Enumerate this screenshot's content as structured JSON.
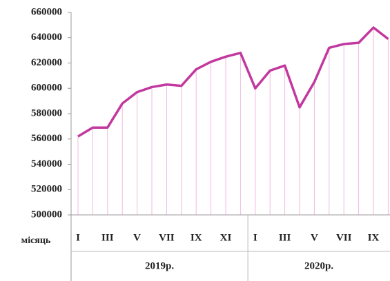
{
  "chart_data": {
    "type": "line",
    "x_label": "місяць",
    "groups": [
      {
        "name": "2019р.",
        "categories": [
          "I",
          null,
          "III",
          null,
          "V",
          null,
          "VII",
          null,
          "IX",
          null,
          "XI",
          null
        ]
      },
      {
        "name": "2020р.",
        "categories": [
          "I",
          null,
          "III",
          null,
          "V",
          null,
          "VII",
          null,
          "IX",
          null
        ]
      }
    ],
    "series": [
      {
        "color": "#c2389f",
        "values": [
          562000,
          569000,
          569000,
          588000,
          597000,
          601000,
          603000,
          602000,
          615000,
          621000,
          625000,
          628000,
          600000,
          614000,
          618000,
          585000,
          605000,
          632000,
          635000,
          636000,
          648000,
          639000
        ]
      }
    ],
    "ylim": [
      500000,
      660000
    ],
    "yticks": [
      500000,
      520000,
      540000,
      560000,
      580000,
      600000,
      620000,
      640000,
      660000
    ],
    "drop_lines": true
  }
}
